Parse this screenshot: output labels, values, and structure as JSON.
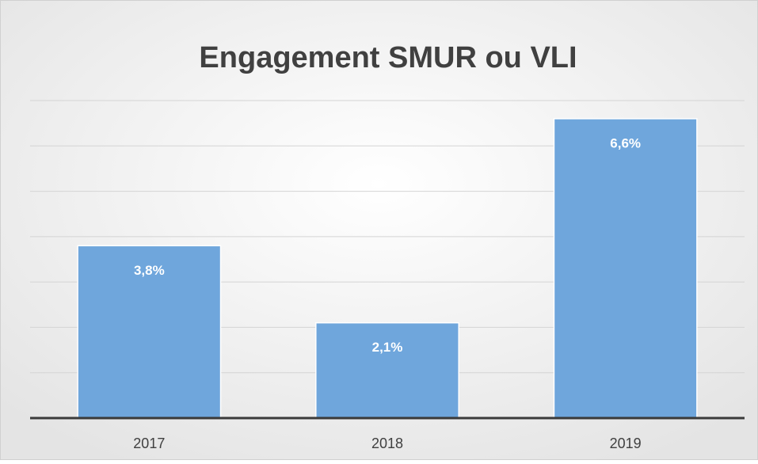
{
  "chart_data": {
    "type": "bar",
    "title": "Engagement SMUR ou VLI",
    "categories": [
      "2017",
      "2018",
      "2019"
    ],
    "values": [
      3.8,
      2.1,
      6.6
    ],
    "value_labels": [
      "3,8%",
      "2,1%",
      "6,6%"
    ],
    "color": "#6fa6dc",
    "ylim": [
      0,
      7
    ],
    "yticks": [
      0,
      1,
      2,
      3,
      4,
      5,
      6,
      7
    ],
    "grid": true
  }
}
